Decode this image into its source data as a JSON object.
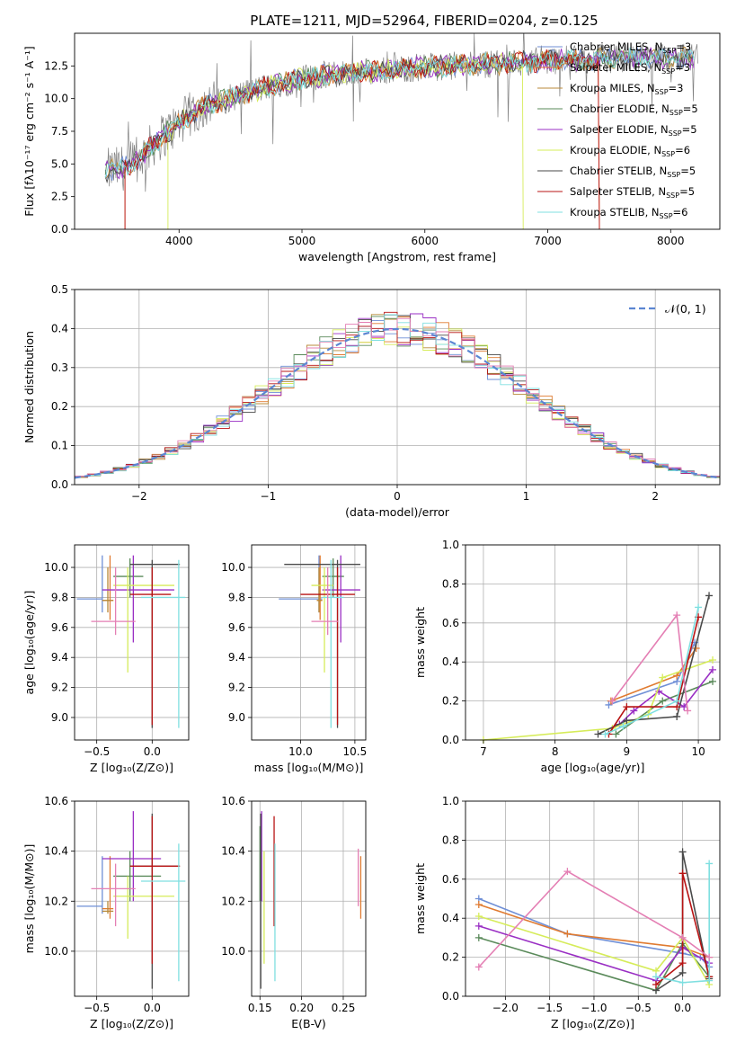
{
  "figure": {
    "colors": {
      "chabrier_miles": "#6f8fd6",
      "salpeter_miles": "#e07b31",
      "kroupa_miles": "#b88a3a",
      "chabrier_elodie": "#5a8a5a",
      "salpeter_elodie": "#9a2fc4",
      "kroupa_elodie": "#d6ec5a",
      "chabrier_stelib": "#4a4a4a",
      "salpeter_stelib": "#b81414",
      "kroupa_stelib": "#7fdfe0",
      "pink": "#e47fb4",
      "gaussian": "#5b86d2"
    }
  },
  "chart_data": [
    {
      "id": "spectrum",
      "type": "line",
      "title": "PLATE=1211, MJD=52964, FIBERID=0204, z=0.125",
      "xlabel": "wavelength [Angstrom, rest frame]",
      "ylabel": "Flux [fλ10⁻¹⁷ erg cm⁻² s⁻¹ A⁻¹]",
      "xlim": [
        3150,
        8400
      ],
      "ylim": [
        0,
        15
      ],
      "xticks": [
        4000,
        5000,
        6000,
        7000,
        8000
      ],
      "yticks": [
        0.0,
        2.5,
        5.0,
        7.5,
        10.0,
        12.5
      ],
      "grid": false,
      "legend_position": "top-right",
      "legend": [
        "Chabrier MILES, N_SSP=3",
        "Salpeter MILES, N_SSP=3",
        "Kroupa MILES, N_SSP=3",
        "Chabrier ELODIE, N_SSP=5",
        "Salpeter ELODIE, N_SSP=5",
        "Kroupa ELODIE, N_SSP=6",
        "Chabrier STELIB, N_SSP=5",
        "Salpeter STELIB, N_SSP=5",
        "Kroupa STELIB, N_SSP=6"
      ],
      "continuum": {
        "x": [
          3400,
          3500,
          3600,
          3700,
          3800,
          3900,
          4000,
          4100,
          4200,
          4400,
          4600,
          4800,
          5000,
          5200,
          5400,
          5600,
          5800,
          6000,
          6200,
          6400,
          6600,
          6800,
          7000,
          7200,
          7400,
          7600,
          7800,
          8000,
          8200
        ],
        "y": [
          4.4,
          4.6,
          4.9,
          5.6,
          6.6,
          7.4,
          8.1,
          8.8,
          9.4,
          10.0,
          10.6,
          11.1,
          11.5,
          11.8,
          12.0,
          12.1,
          12.3,
          12.4,
          12.5,
          12.6,
          12.7,
          12.8,
          12.9,
          13.0,
          13.0,
          13.1,
          13.1,
          13.1,
          13.1
        ]
      }
    },
    {
      "id": "residuals",
      "type": "line",
      "xlabel": "(data-model)/error",
      "ylabel": "Normed distribution",
      "xlim": [
        -2.5,
        2.5
      ],
      "ylim": [
        0,
        0.5
      ],
      "xticks": [
        -2,
        -1,
        0,
        1,
        2
      ],
      "yticks": [
        0.0,
        0.1,
        0.2,
        0.3,
        0.4,
        0.5
      ],
      "grid": true,
      "legend_position": "top-right",
      "legend": [
        "𝒩(0, 1)"
      ],
      "gaussian": {
        "mean": 0,
        "sigma": 1
      }
    },
    {
      "id": "age-vs-Z",
      "type": "scatter",
      "xlabel": "Z [log₁₀(Z/Z⊙)]",
      "ylabel": "age  [log₁₀(age/yr)]",
      "xlim": [
        -0.7,
        0.33
      ],
      "ylim": [
        8.85,
        10.15
      ],
      "xticks": [
        -0.5,
        0.0
      ],
      "yticks": [
        9.0,
        9.2,
        9.4,
        9.6,
        9.8,
        10.0
      ],
      "grid": true,
      "points": [
        {
          "c": "chabrier_miles",
          "x": -0.45,
          "y": 9.79,
          "xe": [
            -0.68,
            -0.45
          ],
          "ye": [
            9.7,
            10.08
          ]
        },
        {
          "c": "salpeter_miles",
          "x": -0.38,
          "y": 9.78,
          "xe": [
            -0.45,
            -0.35
          ],
          "ye": [
            9.65,
            10.08
          ]
        },
        {
          "c": "kroupa_miles",
          "x": -0.4,
          "y": 9.78,
          "xe": [
            -0.45,
            -0.35
          ],
          "ye": [
            9.7,
            10.0
          ]
        },
        {
          "c": "chabrier_elodie",
          "x": -0.2,
          "y": 9.94,
          "xe": [
            -0.35,
            -0.08
          ],
          "ye": [
            9.8,
            10.06
          ]
        },
        {
          "c": "salpeter_elodie",
          "x": -0.17,
          "y": 9.85,
          "xe": [
            -0.45,
            0.2
          ],
          "ye": [
            9.5,
            10.08
          ]
        },
        {
          "c": "kroupa_elodie",
          "x": -0.22,
          "y": 9.88,
          "xe": [
            -0.35,
            0.2
          ],
          "ye": [
            9.3,
            10.0
          ]
        },
        {
          "c": "chabrier_stelib",
          "x": 0.0,
          "y": 10.02,
          "xe": [
            -0.2,
            0.25
          ],
          "ye": [
            8.93,
            10.05
          ]
        },
        {
          "c": "salpeter_stelib",
          "x": 0.0,
          "y": 9.82,
          "xe": [
            -0.2,
            0.17
          ],
          "ye": [
            8.95,
            10.0
          ]
        },
        {
          "c": "kroupa_stelib",
          "x": 0.24,
          "y": 9.8,
          "xe": [
            -0.1,
            0.3
          ],
          "ye": [
            8.93,
            10.05
          ]
        },
        {
          "c": "pink",
          "x": -0.33,
          "y": 9.64,
          "xe": [
            -0.55,
            -0.15
          ],
          "ye": [
            9.55,
            10.0
          ]
        }
      ]
    },
    {
      "id": "age-vs-mass",
      "type": "scatter",
      "xlabel": "mass [log₁₀(M/M⊙)]",
      "ylabel": "",
      "xlim": [
        9.55,
        10.6
      ],
      "ylim": [
        8.85,
        10.15
      ],
      "xticks": [
        10.0,
        10.5
      ],
      "yticks": [
        9.0,
        9.2,
        9.4,
        9.6,
        9.8,
        10.0
      ],
      "grid": true,
      "points": [
        {
          "c": "chabrier_miles",
          "x": 10.17,
          "y": 9.79,
          "xe": [
            9.8,
            10.2
          ],
          "ye": [
            9.7,
            10.08
          ]
        },
        {
          "c": "salpeter_miles",
          "x": 10.18,
          "y": 9.78,
          "xe": [
            10.15,
            10.2
          ],
          "ye": [
            9.65,
            10.08
          ]
        },
        {
          "c": "kroupa_miles",
          "x": 10.17,
          "y": 9.78,
          "xe": [
            10.15,
            10.2
          ],
          "ye": [
            9.7,
            10.0
          ]
        },
        {
          "c": "chabrier_elodie",
          "x": 10.3,
          "y": 9.94,
          "xe": [
            10.2,
            10.4
          ],
          "ye": [
            9.8,
            10.06
          ]
        },
        {
          "c": "salpeter_elodie",
          "x": 10.37,
          "y": 9.85,
          "xe": [
            10.2,
            10.55
          ],
          "ye": [
            9.5,
            10.08
          ]
        },
        {
          "c": "kroupa_elodie",
          "x": 10.22,
          "y": 9.88,
          "xe": [
            10.1,
            10.3
          ],
          "ye": [
            9.3,
            10.0
          ]
        },
        {
          "c": "chabrier_stelib",
          "x": 10.34,
          "y": 10.02,
          "xe": [
            9.85,
            10.55
          ],
          "ye": [
            8.93,
            10.05
          ]
        },
        {
          "c": "salpeter_stelib",
          "x": 10.34,
          "y": 9.82,
          "xe": [
            10.0,
            10.5
          ],
          "ye": [
            8.95,
            10.0
          ]
        },
        {
          "c": "kroupa_stelib",
          "x": 10.28,
          "y": 9.8,
          "xe": [
            10.2,
            10.4
          ],
          "ye": [
            8.93,
            10.05
          ]
        },
        {
          "c": "pink",
          "x": 10.25,
          "y": 9.64,
          "xe": [
            10.1,
            10.35
          ],
          "ye": [
            9.55,
            10.0
          ]
        }
      ]
    },
    {
      "id": "mass-weight-vs-age",
      "type": "line",
      "xlabel": "age  [log₁₀(age/yr)]",
      "ylabel": "mass weight",
      "xlim": [
        6.75,
        10.3
      ],
      "ylim": [
        0,
        1
      ],
      "xticks": [
        7,
        8,
        9,
        10
      ],
      "yticks": [
        0.0,
        0.2,
        0.4,
        0.6,
        0.8,
        1.0
      ],
      "grid": true,
      "series": [
        {
          "c": "chabrier_miles",
          "x": [
            8.75,
            9.7,
            9.95
          ],
          "y": [
            0.18,
            0.3,
            0.5
          ]
        },
        {
          "c": "salpeter_miles",
          "x": [
            8.78,
            9.7,
            9.97
          ],
          "y": [
            0.2,
            0.33,
            0.47
          ]
        },
        {
          "c": "chabrier_elodie",
          "x": [
            8.85,
            9.5,
            10.2
          ],
          "y": [
            0.03,
            0.2,
            0.3
          ]
        },
        {
          "c": "salpeter_elodie",
          "x": [
            8.9,
            9.1,
            9.45,
            9.8,
            10.2
          ],
          "y": [
            0.08,
            0.15,
            0.25,
            0.17,
            0.36
          ]
        },
        {
          "c": "kroupa_elodie",
          "x": [
            7.0,
            8.8,
            9.3,
            9.5,
            10.2
          ],
          "y": [
            0.0,
            0.06,
            0.13,
            0.32,
            0.41
          ]
        },
        {
          "c": "chabrier_stelib",
          "x": [
            8.6,
            9.0,
            9.7,
            10.15
          ],
          "y": [
            0.03,
            0.1,
            0.12,
            0.74
          ]
        },
        {
          "c": "salpeter_stelib",
          "x": [
            8.75,
            9.0,
            9.7,
            10.0
          ],
          "y": [
            0.03,
            0.17,
            0.17,
            0.63
          ]
        },
        {
          "c": "kroupa_stelib",
          "x": [
            8.7,
            8.95,
            9.7,
            10.0
          ],
          "y": [
            0.03,
            0.07,
            0.2,
            0.68
          ]
        },
        {
          "c": "pink",
          "x": [
            8.8,
            9.7,
            9.85
          ],
          "y": [
            0.2,
            0.64,
            0.15
          ]
        }
      ]
    },
    {
      "id": "mass-vs-Z",
      "type": "scatter",
      "xlabel": "Z [log₁₀(Z/Z⊙)]",
      "ylabel": "mass [log₁₀(M/M⊙)]",
      "xlim": [
        -0.7,
        0.33
      ],
      "ylim": [
        9.82,
        10.6
      ],
      "xticks": [
        -0.5,
        0.0
      ],
      "yticks": [
        10.0,
        10.2,
        10.4,
        10.6
      ],
      "grid": true,
      "points": [
        {
          "c": "chabrier_miles",
          "x": -0.45,
          "y": 10.18,
          "xe": [
            -0.68,
            -0.45
          ],
          "ye": [
            10.15,
            10.38
          ]
        },
        {
          "c": "salpeter_miles",
          "x": -0.38,
          "y": 10.17,
          "xe": [
            -0.45,
            -0.35
          ],
          "ye": [
            10.13,
            10.38
          ]
        },
        {
          "c": "kroupa_miles",
          "x": -0.4,
          "y": 10.16,
          "xe": [
            -0.45,
            -0.35
          ],
          "ye": [
            10.15,
            10.2
          ]
        },
        {
          "c": "chabrier_elodie",
          "x": -0.2,
          "y": 10.3,
          "xe": [
            -0.35,
            0.08
          ],
          "ye": [
            10.2,
            10.4
          ]
        },
        {
          "c": "salpeter_elodie",
          "x": -0.17,
          "y": 10.37,
          "xe": [
            -0.45,
            0.08
          ],
          "ye": [
            10.2,
            10.56
          ]
        },
        {
          "c": "kroupa_elodie",
          "x": -0.22,
          "y": 10.22,
          "xe": [
            -0.35,
            0.2
          ],
          "ye": [
            10.05,
            10.3
          ]
        },
        {
          "c": "chabrier_stelib",
          "x": 0.0,
          "y": 10.34,
          "xe": [
            -0.2,
            0.25
          ],
          "ye": [
            9.85,
            10.55
          ]
        },
        {
          "c": "salpeter_stelib",
          "x": 0.0,
          "y": 10.34,
          "xe": [
            -0.2,
            0.25
          ],
          "ye": [
            9.95,
            10.54
          ]
        },
        {
          "c": "kroupa_stelib",
          "x": 0.24,
          "y": 10.28,
          "xe": [
            -0.1,
            0.3
          ],
          "ye": [
            9.88,
            10.43
          ]
        },
        {
          "c": "pink",
          "x": -0.33,
          "y": 10.25,
          "xe": [
            -0.55,
            -0.15
          ],
          "ye": [
            10.1,
            10.35
          ]
        }
      ]
    },
    {
      "id": "mass-vs-EBV",
      "type": "scatter",
      "xlabel": "E(B-V)",
      "ylabel": "",
      "xlim": [
        0.14,
        0.277
      ],
      "ylim": [
        9.82,
        10.6
      ],
      "xticks": [
        0.15,
        0.2,
        0.25
      ],
      "yticks": [
        10.0,
        10.2,
        10.4,
        10.6
      ],
      "grid": true,
      "points": [
        {
          "c": "chabrier_elodie",
          "x": 0.15,
          "y": 10.2,
          "xe": [
            0.15,
            0.15
          ],
          "ye": [
            10.2,
            10.5
          ]
        },
        {
          "c": "salpeter_elodie",
          "x": 0.152,
          "y": 10.37,
          "xe": [
            0.152,
            0.152
          ],
          "ye": [
            10.2,
            10.56
          ]
        },
        {
          "c": "chabrier_stelib",
          "x": 0.151,
          "y": 10.34,
          "xe": [
            0.151,
            0.151
          ],
          "ye": [
            9.85,
            10.55
          ]
        },
        {
          "c": "kroupa_elodie",
          "x": 0.155,
          "y": 10.22,
          "xe": [
            0.155,
            0.155
          ],
          "ye": [
            9.95,
            10.4
          ]
        },
        {
          "c": "salpeter_stelib",
          "x": 0.167,
          "y": 10.34,
          "xe": [
            0.167,
            0.167
          ],
          "ye": [
            10.1,
            10.54
          ]
        },
        {
          "c": "kroupa_stelib",
          "x": 0.168,
          "y": 10.28,
          "xe": [
            0.168,
            0.168
          ],
          "ye": [
            9.88,
            10.43
          ]
        },
        {
          "c": "pink",
          "x": 0.268,
          "y": 10.25,
          "xe": [
            0.268,
            0.268
          ],
          "ye": [
            10.18,
            10.41
          ]
        },
        {
          "c": "salpeter_miles",
          "x": 0.271,
          "y": 10.17,
          "xe": [
            0.271,
            0.271
          ],
          "ye": [
            10.13,
            10.38
          ]
        }
      ]
    },
    {
      "id": "mass-weight-vs-Z",
      "type": "line",
      "xlabel": "Z [log₁₀(Z/Z⊙)]",
      "ylabel": "mass weight",
      "xlim": [
        -2.45,
        0.42
      ],
      "ylim": [
        0,
        1
      ],
      "xticks": [
        -2.0,
        -1.5,
        -1.0,
        -0.5,
        0.0
      ],
      "yticks": [
        0.0,
        0.2,
        0.4,
        0.6,
        0.8,
        1.0
      ],
      "grid": true,
      "series": [
        {
          "c": "chabrier_miles",
          "x": [
            -2.3,
            -1.3,
            0.0,
            0.2,
            0.3
          ],
          "y": [
            0.5,
            0.32,
            0.22,
            0.2,
            0.15
          ]
        },
        {
          "c": "salpeter_miles",
          "x": [
            -2.3,
            -1.3,
            0.0,
            0.3
          ],
          "y": [
            0.47,
            0.32,
            0.25,
            0.2
          ]
        },
        {
          "c": "chabrier_elodie",
          "x": [
            -2.3,
            -0.3,
            0.0,
            0.3
          ],
          "y": [
            0.3,
            0.03,
            0.27,
            0.1
          ]
        },
        {
          "c": "salpeter_elodie",
          "x": [
            -2.3,
            -0.3,
            0.0,
            0.3
          ],
          "y": [
            0.36,
            0.08,
            0.25,
            0.17
          ]
        },
        {
          "c": "kroupa_elodie",
          "x": [
            -2.3,
            -0.3,
            0.0,
            0.3
          ],
          "y": [
            0.41,
            0.13,
            0.3,
            0.06
          ]
        },
        {
          "c": "chabrier_stelib",
          "x": [
            -0.3,
            0.0,
            0.0,
            0.3
          ],
          "y": [
            0.03,
            0.12,
            0.74,
            0.09
          ]
        },
        {
          "c": "salpeter_stelib",
          "x": [
            -0.3,
            0.0,
            0.0,
            0.3
          ],
          "y": [
            0.06,
            0.17,
            0.63,
            0.1
          ]
        },
        {
          "c": "kroupa_stelib",
          "x": [
            -0.3,
            0.0,
            0.3,
            0.3
          ],
          "y": [
            0.1,
            0.07,
            0.08,
            0.68
          ]
        },
        {
          "c": "pink",
          "x": [
            -2.3,
            -1.3,
            0.0,
            0.3
          ],
          "y": [
            0.15,
            0.64,
            0.3,
            0.2
          ]
        }
      ]
    }
  ]
}
